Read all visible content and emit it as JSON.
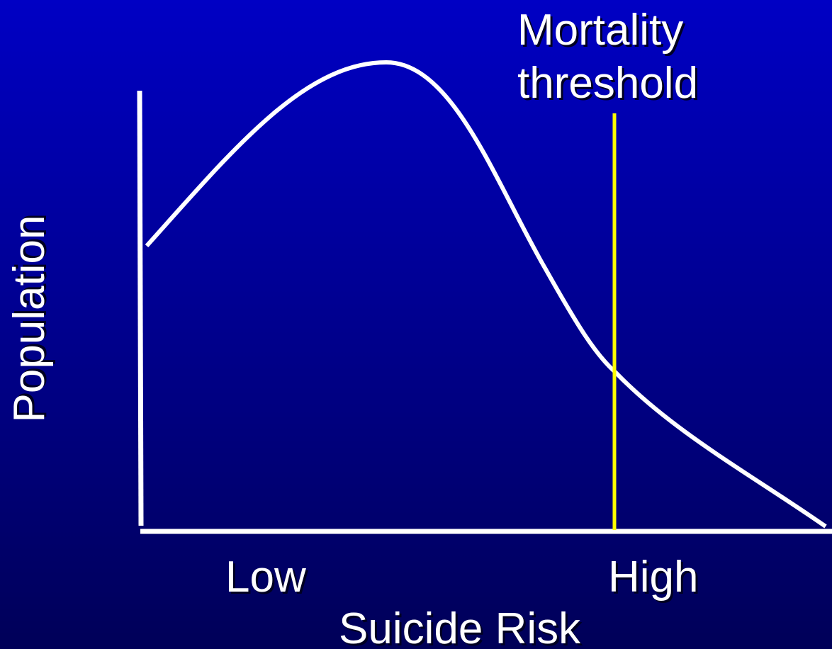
{
  "annotation": {
    "lines": [
      "Mortality",
      "threshold"
    ]
  },
  "y_axis": {
    "label": "Population"
  },
  "x_axis": {
    "label": "Suicide Risk",
    "low": "Low",
    "high": "High"
  }
}
